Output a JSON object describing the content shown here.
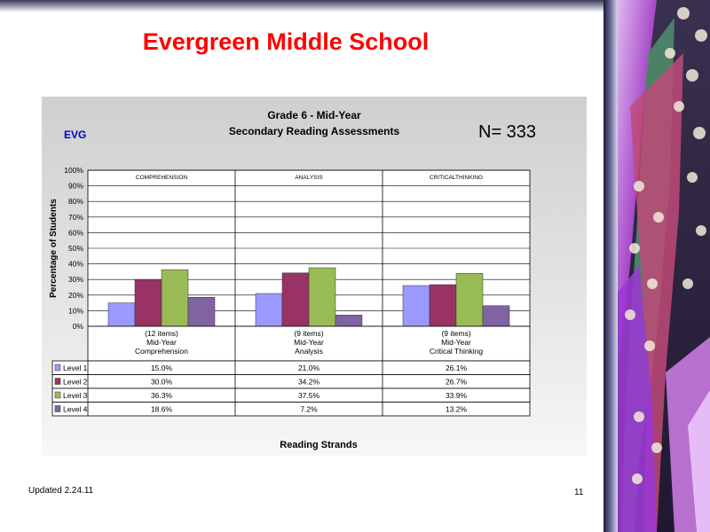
{
  "slide": {
    "title": "Evergreen Middle School",
    "updated": "Updated  2.24.11",
    "page_number": "11"
  },
  "chart_header": {
    "school_code": "EVG",
    "n_label": "N=  333"
  },
  "chart_data": {
    "type": "bar",
    "title": "Grade 6 - Mid-Year",
    "subtitle": "Secondary Reading Assessments",
    "xlabel": "Reading Strands",
    "ylabel": "Percentage of Students",
    "ylim": [
      0,
      100
    ],
    "yticks": [
      "0%",
      "10%",
      "20%",
      "30%",
      "40%",
      "50%",
      "60%",
      "70%",
      "80%",
      "90%",
      "100%"
    ],
    "grid": true,
    "panel_labels": [
      "COMPREHENSION",
      "ANALYSIS",
      "CRITICALTHINKING"
    ],
    "categories": [
      [
        "(12 items)",
        "Mid-Year",
        "Comprehension"
      ],
      [
        "(9 items)",
        "Mid-Year",
        "Analysis"
      ],
      [
        "(9 items)",
        "Mid-Year",
        "Critical Thinking"
      ]
    ],
    "series": [
      {
        "name": "Level 1",
        "color": "#9999ff",
        "values": [
          15.0,
          21.0,
          26.1
        ],
        "labels": [
          "15.0%",
          "21.0%",
          "26.1%"
        ]
      },
      {
        "name": "Level 2",
        "color": "#993366",
        "values": [
          30.0,
          34.2,
          26.7
        ],
        "labels": [
          "30.0%",
          "34.2%",
          "26.7%"
        ]
      },
      {
        "name": "Level 3",
        "color": "#99bb55",
        "values": [
          36.3,
          37.5,
          33.9
        ],
        "labels": [
          "36.3%",
          "37.5%",
          "33.9%"
        ]
      },
      {
        "name": "Level 4",
        "color": "#8064a2",
        "values": [
          18.6,
          7.2,
          13.2
        ],
        "labels": [
          "18.6%",
          "7.2%",
          "13.2%"
        ]
      }
    ]
  }
}
